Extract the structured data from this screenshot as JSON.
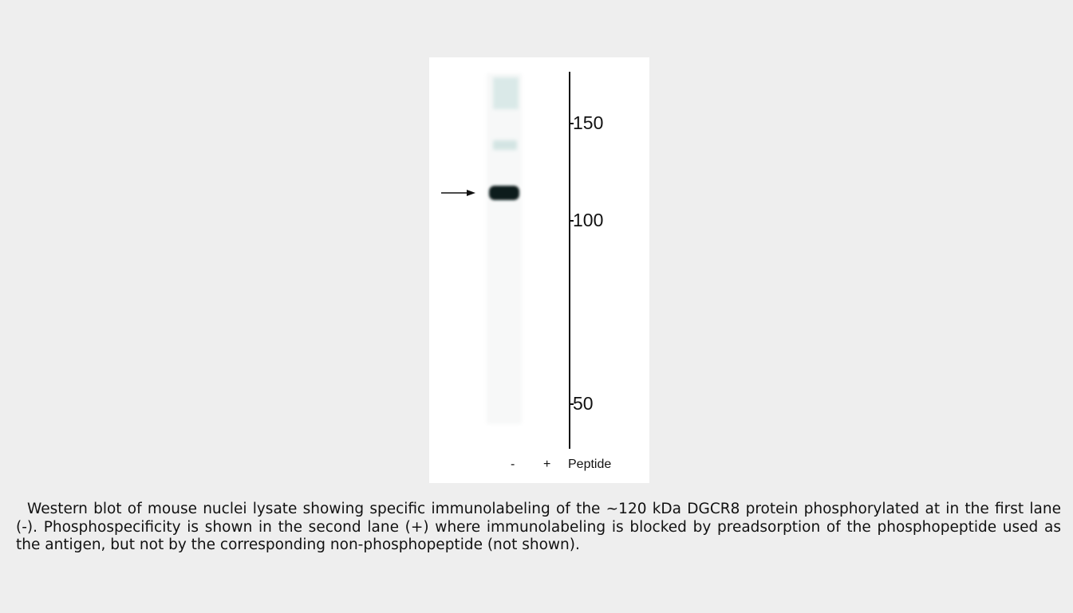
{
  "figure": {
    "markers": [
      "150",
      "100",
      "50"
    ],
    "lanes": [
      "-",
      "+"
    ],
    "lane_caption": "Peptide"
  },
  "caption": "Western blot of mouse nuclei lysate showing specific immunolabeling of the ~120 kDa DGCR8 protein phosphorylated at in the first lane (-). Phosphospecificity is shown in the second lane (+) where immunolabeling is blocked by preadsorption of the phosphopeptide used as the antigen, but not by the corresponding non-phosphopeptide (not shown)."
}
